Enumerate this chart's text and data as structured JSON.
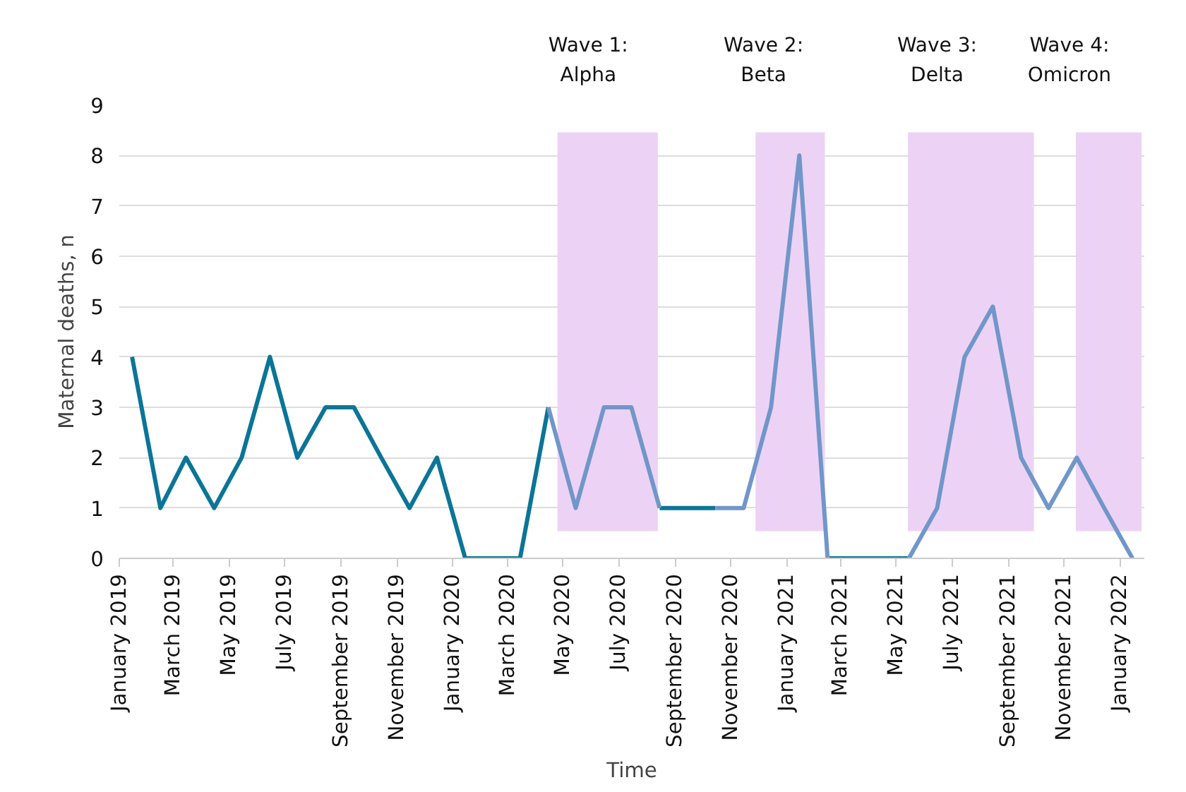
{
  "chart_data": {
    "type": "line",
    "xlabel": "Time",
    "ylabel": "Maternal deaths, n",
    "x": [
      "2019-01-15",
      "2019-02-15",
      "2019-03-15",
      "2019-04-15",
      "2019-05-15",
      "2019-06-15",
      "2019-07-15",
      "2019-08-15",
      "2019-09-15",
      "2019-10-15",
      "2019-11-15",
      "2019-12-15",
      "2020-01-15",
      "2020-02-15",
      "2020-03-15",
      "2020-04-15",
      "2020-05-15",
      "2020-06-15",
      "2020-07-15",
      "2020-08-15",
      "2020-09-15",
      "2020-10-15",
      "2020-11-15",
      "2020-12-15",
      "2021-01-15",
      "2021-02-15",
      "2021-03-15",
      "2021-04-15",
      "2021-05-15",
      "2021-06-15",
      "2021-07-15",
      "2021-08-15",
      "2021-09-15",
      "2021-10-15",
      "2021-11-15",
      "2021-12-15",
      "2022-01-15"
    ],
    "series": [
      {
        "color": "#0b7597",
        "values": [
          4,
          1,
          2,
          1,
          2,
          4,
          2,
          3,
          3,
          2,
          1,
          2,
          0,
          0,
          0,
          3,
          null,
          null,
          null,
          1,
          1,
          1,
          null,
          null,
          null,
          0,
          0,
          0,
          0,
          null,
          null,
          null,
          null,
          null,
          null,
          null,
          null
        ]
      },
      {
        "color": "#7196c9",
        "values": [
          null,
          null,
          null,
          null,
          null,
          null,
          null,
          null,
          null,
          null,
          null,
          null,
          null,
          null,
          null,
          3,
          1,
          3,
          3,
          1,
          null,
          1,
          1,
          3,
          8,
          0,
          null,
          null,
          0,
          1,
          4,
          5,
          2,
          1,
          2,
          1,
          0
        ]
      }
    ],
    "xlim": [
      "2019-01-01",
      "2022-01-28"
    ],
    "xticks": [
      {
        "value": "2019-01-01",
        "label": "January 2019"
      },
      {
        "value": "2019-03-01",
        "label": "March 2019"
      },
      {
        "value": "2019-05-01",
        "label": "May 2019"
      },
      {
        "value": "2019-07-01",
        "label": "July 2019"
      },
      {
        "value": "2019-09-01",
        "label": "September 2019"
      },
      {
        "value": "2019-11-01",
        "label": "November 2019"
      },
      {
        "value": "2020-01-01",
        "label": "January 2020"
      },
      {
        "value": "2020-03-01",
        "label": "March 2020"
      },
      {
        "value": "2020-05-01",
        "label": "May 2020"
      },
      {
        "value": "2020-07-01",
        "label": "July 2020"
      },
      {
        "value": "2020-09-01",
        "label": "September 2020"
      },
      {
        "value": "2020-11-01",
        "label": "November 2020"
      },
      {
        "value": "2021-01-01",
        "label": "January 2021"
      },
      {
        "value": "2021-03-01",
        "label": "March 2021"
      },
      {
        "value": "2021-05-01",
        "label": "May 2021"
      },
      {
        "value": "2021-07-01",
        "label": "July 2021"
      },
      {
        "value": "2021-09-01",
        "label": "September 2021"
      },
      {
        "value": "2021-11-01",
        "label": "November 2021"
      },
      {
        "value": "2022-01-01",
        "label": "January 2022"
      }
    ],
    "ylim": [
      0,
      9
    ],
    "yticks": [
      0,
      1,
      2,
      3,
      4,
      5,
      6,
      7,
      8,
      9
    ],
    "grid": "y",
    "marker": "none",
    "line_style": "solid",
    "bands": [
      {
        "axis": "x",
        "from": "2020-04-25",
        "to": "2020-08-13",
        "label": "Wave 1:\nAlpha",
        "color": "#ecd3f5"
      },
      {
        "axis": "x",
        "from": "2020-11-28",
        "to": "2021-02-12",
        "label": "Wave 2:\nBeta",
        "color": "#ecd3f5"
      },
      {
        "axis": "x",
        "from": "2021-05-14",
        "to": "2021-09-29",
        "label": "Wave 3:\nDelta",
        "color": "#ecd3f5"
      },
      {
        "axis": "x",
        "from": "2021-11-14",
        "to": "2022-01-25",
        "label": "Wave 4:\nOmicron",
        "color": "#ecd3f5"
      }
    ]
  }
}
